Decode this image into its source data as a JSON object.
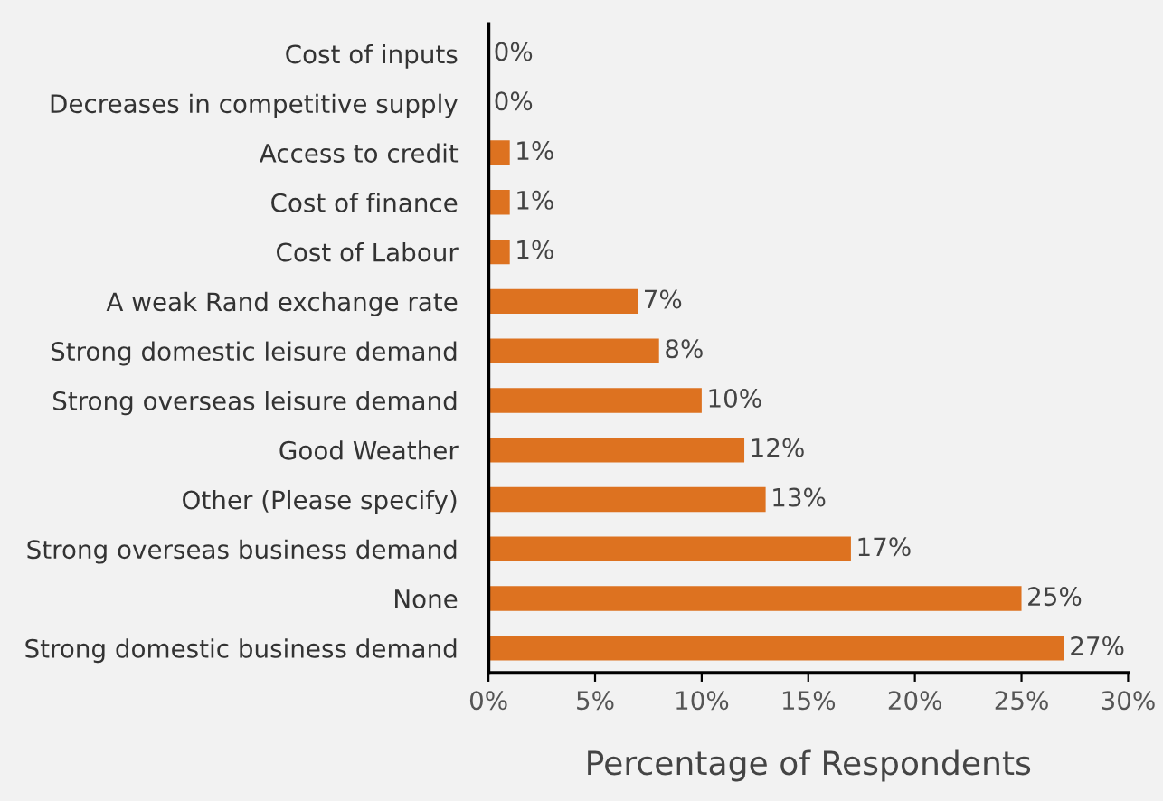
{
  "chart_data": {
    "type": "bar",
    "orientation": "horizontal",
    "xlabel": "Percentage of Respondents",
    "categories": [
      "Cost of inputs",
      "Decreases in competitive supply",
      "Access to credit",
      "Cost of finance",
      "Cost of Labour",
      "A weak Rand exchange rate",
      "Strong domestic leisure demand",
      "Strong overseas leisure demand",
      "Good Weather",
      "Other (Please specify)",
      "Strong overseas business demand",
      "None",
      "Strong domestic business demand"
    ],
    "values": [
      0,
      0,
      1,
      1,
      1,
      7,
      8,
      10,
      12,
      13,
      17,
      25,
      27
    ],
    "value_labels": [
      "0%",
      "0%",
      "1%",
      "1%",
      "1%",
      "7%",
      "8%",
      "10%",
      "12%",
      "13%",
      "17%",
      "25%",
      "27%"
    ],
    "color": "#dd7220",
    "xlim": [
      0,
      30
    ],
    "xticks": [
      {
        "value": 0,
        "label": "0%"
      },
      {
        "value": 5,
        "label": "5%"
      },
      {
        "value": 10,
        "label": "10%"
      },
      {
        "value": 15,
        "label": "15%"
      },
      {
        "value": 20,
        "label": "20%"
      },
      {
        "value": 25,
        "label": "25%"
      },
      {
        "value": 30,
        "label": "30%"
      }
    ],
    "grid": false,
    "legend": false
  }
}
